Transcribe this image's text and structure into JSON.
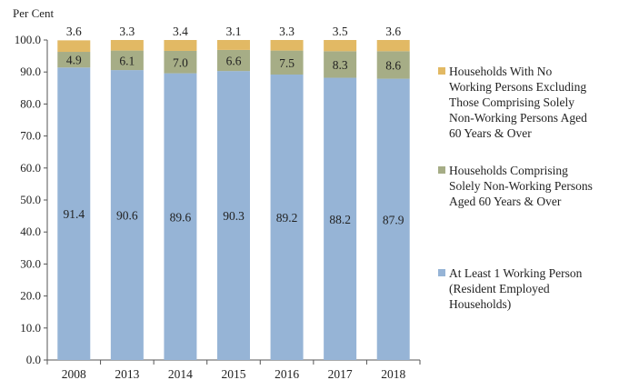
{
  "chart_data": {
    "type": "bar",
    "stacked": true,
    "ylabel": "Per Cent",
    "ylim": [
      0,
      100
    ],
    "yticks": [
      "0.0",
      "10.0",
      "20.0",
      "30.0",
      "40.0",
      "50.0",
      "60.0",
      "70.0",
      "80.0",
      "90.0",
      "100.0"
    ],
    "categories": [
      "2008",
      "2013",
      "2014",
      "2015",
      "2016",
      "2017",
      "2018"
    ],
    "series": [
      {
        "name": "At Least 1 Working Person (Resident Employed Households)",
        "color": "#96b4d6",
        "values": [
          91.4,
          90.6,
          89.6,
          90.3,
          89.2,
          88.2,
          87.9
        ],
        "labels": [
          "91.4",
          "90.6",
          "89.6",
          "90.3",
          "89.2",
          "88.2",
          "87.9"
        ]
      },
      {
        "name": "Households Comprising Solely Non-Working Persons Aged 60 Years & Over",
        "color": "#a6ad86",
        "values": [
          4.9,
          6.1,
          7.0,
          6.6,
          7.5,
          8.3,
          8.6
        ],
        "labels": [
          "4.9",
          "6.1",
          "7.0",
          "6.6",
          "7.5",
          "8.3",
          "8.6"
        ]
      },
      {
        "name": "Households With No Working Persons Excluding Those Comprising Solely Non-Working Persons Aged 60 Years & Over",
        "color": "#e2b964",
        "values": [
          3.6,
          3.3,
          3.4,
          3.1,
          3.3,
          3.5,
          3.6
        ],
        "labels": [
          "3.6",
          "3.3",
          "3.4",
          "3.1",
          "3.3",
          "3.5",
          "3.6"
        ]
      }
    ],
    "legend_position": "right",
    "grid": false
  },
  "legend": [
    {
      "lines": [
        "Households With No",
        "Working Persons Excluding",
        "Those Comprising Solely",
        "Non-Working Persons Aged",
        "60 Years & Over"
      ],
      "color": "#e2b964"
    },
    {
      "lines": [
        "Households Comprising",
        "Solely Non-Working Persons",
        "Aged 60 Years & Over"
      ],
      "color": "#a6ad86"
    },
    {
      "lines": [
        "At Least 1 Working Person",
        "(Resident Employed",
        "Households)"
      ],
      "color": "#96b4d6"
    }
  ]
}
